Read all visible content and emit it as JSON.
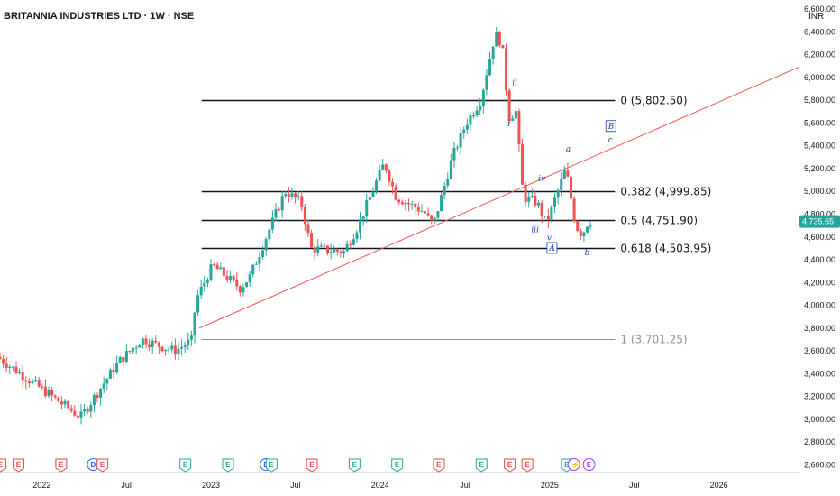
{
  "header": {
    "title": "BRITANNIA INDUSTRIES LTD · 1W · NSE"
  },
  "axis": {
    "currency": "INR"
  },
  "price_tag": {
    "text": "4,735.65",
    "color": "#26a69a"
  },
  "colors": {
    "up": "#26a69a",
    "down": "#ef5350",
    "trend": "#ef5350",
    "fib": "#131722",
    "fib_gray": "#8c8f99",
    "wave": "#1f3fa8",
    "earnings": "#e64a3c",
    "earnings_up": "#26a69a",
    "dividend": "#2962ff",
    "split": "#a13cf0"
  },
  "chart_data": {
    "type": "candlestick",
    "title": "BRITANNIA INDUSTRIES LTD · 1W · NSE",
    "y_ticks": [
      "2,600.00",
      "2,800.00",
      "3,000.00",
      "3,200.00",
      "3,400.00",
      "3,600.00",
      "3,800.00",
      "4,000.00",
      "4,200.00",
      "4,400.00",
      "4,600.00",
      "4,800.00",
      "5,000.00",
      "5,200.00",
      "5,400.00",
      "5,600.00",
      "5,800.00",
      "6,000.00",
      "6,200.00",
      "6,400.00",
      "6,600.00"
    ],
    "y_tick_values": [
      2600,
      2800,
      3000,
      3200,
      3400,
      3600,
      3800,
      4000,
      4200,
      4400,
      4600,
      4800,
      5000,
      5200,
      5400,
      5600,
      5800,
      6000,
      6200,
      6400,
      6600
    ],
    "ylim": [
      2540,
      6680
    ],
    "x_ticks": [
      {
        "label": "2022",
        "date": "2022-01"
      },
      {
        "label": "Jul",
        "date": "2022-07"
      },
      {
        "label": "2023",
        "date": "2023-01"
      },
      {
        "label": "Jul",
        "date": "2023-07"
      },
      {
        "label": "2024",
        "date": "2024-01"
      },
      {
        "label": "Jul",
        "date": "2024-07"
      },
      {
        "label": "2025",
        "date": "2025-01"
      },
      {
        "label": "Jul",
        "date": "2025-07"
      },
      {
        "label": "2026",
        "date": "2026-01"
      }
    ],
    "xlim": [
      "2021-10-01",
      "2026-06-20"
    ],
    "anchors": [
      {
        "date": "2021-10-01",
        "price": 3550
      },
      {
        "date": "2022-03-10",
        "price": 3080
      },
      {
        "date": "2022-03-31",
        "price": 3020
      },
      {
        "date": "2022-06-20",
        "price": 3500
      },
      {
        "date": "2022-08-10",
        "price": 3700
      },
      {
        "date": "2022-10-20",
        "price": 3600
      },
      {
        "date": "2022-11-25",
        "price": 3690
      },
      {
        "date": "2022-12-05",
        "price": 4050
      },
      {
        "date": "2023-01-10",
        "price": 4350
      },
      {
        "date": "2023-03-10",
        "price": 4150
      },
      {
        "date": "2023-03-31",
        "price": 4250
      },
      {
        "date": "2023-06-15",
        "price": 5000
      },
      {
        "date": "2023-07-20",
        "price": 4900
      },
      {
        "date": "2023-08-10",
        "price": 4500
      },
      {
        "date": "2023-10-20",
        "price": 4470
      },
      {
        "date": "2023-11-20",
        "price": 4700
      },
      {
        "date": "2024-01-15",
        "price": 5250
      },
      {
        "date": "2024-02-10",
        "price": 4950
      },
      {
        "date": "2024-04-10",
        "price": 4820
      },
      {
        "date": "2024-04-30",
        "price": 4700
      },
      {
        "date": "2024-06-10",
        "price": 5300
      },
      {
        "date": "2024-07-10",
        "price": 5600
      },
      {
        "date": "2024-08-10",
        "price": 5800
      },
      {
        "date": "2024-09-10",
        "price": 6380
      },
      {
        "date": "2024-09-25",
        "price": 6300
      },
      {
        "date": "2024-10-10",
        "price": 5650
      },
      {
        "date": "2024-10-25",
        "price": 5700
      },
      {
        "date": "2024-11-10",
        "price": 4950
      },
      {
        "date": "2024-12-10",
        "price": 4900
      },
      {
        "date": "2024-12-30",
        "price": 4720
      },
      {
        "date": "2025-02-10",
        "price": 5200
      },
      {
        "date": "2025-03-03",
        "price": 4700
      },
      {
        "date": "2025-03-17",
        "price": 4620
      },
      {
        "date": "2025-03-30",
        "price": 4735
      }
    ],
    "fib_levels": [
      {
        "label": "0 (5,802.50)",
        "price": 5802.5,
        "style": "dark"
      },
      {
        "label": "0.382 (4,999.85)",
        "price": 4999.85,
        "style": "dark"
      },
      {
        "label": "0.5 (4,751.90)",
        "price": 4751.9,
        "style": "dark"
      },
      {
        "label": "0.618 (4,503.95)",
        "price": 4503.95,
        "style": "dark"
      },
      {
        "label": "1 (3,701.25)",
        "price": 3701.25,
        "style": "gray"
      }
    ],
    "fib_start": "2022-12-10",
    "fib_end": "2025-05-20",
    "trendline": {
      "from": {
        "date": "2022-12-05",
        "price": 3800
      },
      "to": {
        "date": "2026-06-20",
        "price": 6090
      }
    },
    "wave_labels": [
      {
        "text": "ii",
        "date": "2024-10-15",
        "price": 5930,
        "boxed": false
      },
      {
        "text": "i",
        "date": "2024-10-05",
        "price": 5570,
        "boxed": false
      },
      {
        "text": "iv",
        "date": "2024-12-10",
        "price": 5090,
        "boxed": false
      },
      {
        "text": "iii",
        "date": "2024-11-25",
        "price": 4640,
        "boxed": false
      },
      {
        "text": "v",
        "date": "2024-12-29",
        "price": 4570,
        "boxed": false
      },
      {
        "text": "A",
        "date": "2025-01-03",
        "price": 4480,
        "boxed": true
      },
      {
        "text": "a",
        "date": "2025-02-08",
        "price": 5350,
        "boxed": false
      },
      {
        "text": "B",
        "date": "2025-05-10",
        "price": 5550,
        "boxed": true
      },
      {
        "text": "c",
        "date": "2025-05-10",
        "price": 5430,
        "boxed": false
      },
      {
        "text": "b",
        "date": "2025-03-20",
        "price": 4440,
        "boxed": false
      }
    ],
    "last_price": 4735.65
  },
  "events": [
    {
      "type": "E",
      "date": "2021-10-02",
      "kind": "earnings"
    },
    {
      "type": "E",
      "date": "2021-11-10",
      "kind": "earnings"
    },
    {
      "type": "E",
      "date": "2022-02-10",
      "kind": "earnings"
    },
    {
      "type": "D",
      "date": "2022-04-20",
      "kind": "dividend"
    },
    {
      "type": "E",
      "date": "2022-05-10",
      "kind": "earnings"
    },
    {
      "type": "E",
      "date": "2022-11-05",
      "kind": "earnings_up"
    },
    {
      "type": "E",
      "date": "2023-02-05",
      "kind": "earnings_up"
    },
    {
      "type": "D",
      "date": "2023-04-28",
      "kind": "dividend"
    },
    {
      "type": "E",
      "date": "2023-05-10",
      "kind": "earnings_up"
    },
    {
      "type": "E",
      "date": "2023-08-05",
      "kind": "earnings"
    },
    {
      "type": "E",
      "date": "2023-11-05",
      "kind": "earnings_up"
    },
    {
      "type": "E",
      "date": "2024-02-05",
      "kind": "earnings_up"
    },
    {
      "type": "E",
      "date": "2024-05-05",
      "kind": "earnings"
    },
    {
      "type": "E",
      "date": "2024-08-05",
      "kind": "earnings_up"
    },
    {
      "type": "E",
      "date": "2024-10-05",
      "kind": "earnings"
    },
    {
      "type": "E",
      "date": "2024-11-12",
      "kind": "earnings"
    },
    {
      "type": "E",
      "date": "2025-02-05",
      "kind": "earnings_up"
    },
    {
      "type": "⚡",
      "date": "2025-02-20",
      "kind": "split"
    },
    {
      "type": "E",
      "date": "2025-03-25",
      "kind": "split"
    }
  ]
}
